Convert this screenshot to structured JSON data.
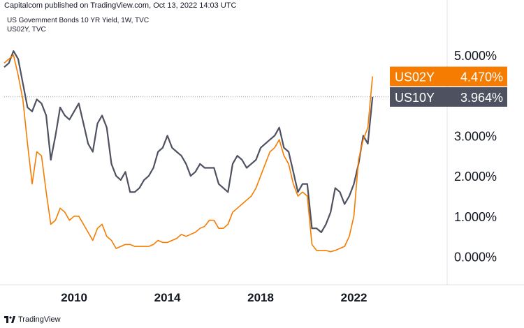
{
  "header": {
    "published": "Capitalcom published on TradingView.com, Oct 13, 2022 14:03 UTC"
  },
  "footer": {
    "brand": "TradingView"
  },
  "colors": {
    "us02y": "#f57c00",
    "us10y": "#4e5160",
    "background": "#ffffff",
    "text": "#131722",
    "dotted": "#9598a1"
  },
  "chart_data": {
    "type": "line",
    "title": "US Government Bonds 10 YR Yield, 1W, TVC",
    "subtitle": "US02Y, TVC",
    "xlabel": "",
    "ylabel": "",
    "x_ticks": [
      "2010",
      "2014",
      "2018",
      "2022"
    ],
    "y_ticks": [
      "5.000%",
      "4.000%",
      "3.000%",
      "2.000%",
      "1.000%",
      "0.000%"
    ],
    "ylim": [
      -0.7,
      5.5
    ],
    "xlim": [
      2007.0,
      2026.0
    ],
    "grid": false,
    "current_line_value": 3.964,
    "labels": [
      {
        "series": "US02Y",
        "name": "US02Y",
        "value_text": "4.470%"
      },
      {
        "series": "US10Y",
        "name": "US10Y",
        "value_text": "3.964%"
      }
    ],
    "series": [
      {
        "name": "US10Y",
        "x": [
          2007.0,
          2007.2,
          2007.4,
          2007.6,
          2007.8,
          2008.0,
          2008.2,
          2008.4,
          2008.6,
          2008.8,
          2009.0,
          2009.2,
          2009.4,
          2009.6,
          2009.8,
          2010.0,
          2010.2,
          2010.4,
          2010.6,
          2010.8,
          2011.0,
          2011.2,
          2011.4,
          2011.6,
          2011.8,
          2012.0,
          2012.2,
          2012.4,
          2012.6,
          2012.8,
          2013.0,
          2013.2,
          2013.4,
          2013.6,
          2013.8,
          2014.0,
          2014.2,
          2014.4,
          2014.6,
          2014.8,
          2015.0,
          2015.2,
          2015.4,
          2015.6,
          2015.8,
          2016.0,
          2016.2,
          2016.4,
          2016.6,
          2016.8,
          2017.0,
          2017.2,
          2017.4,
          2017.6,
          2017.8,
          2018.0,
          2018.2,
          2018.4,
          2018.6,
          2018.8,
          2019.0,
          2019.2,
          2019.4,
          2019.6,
          2019.8,
          2020.0,
          2020.2,
          2020.4,
          2020.6,
          2020.8,
          2021.0,
          2021.2,
          2021.4,
          2021.6,
          2021.8,
          2022.0,
          2022.2,
          2022.4,
          2022.6,
          2022.8
        ],
        "values": [
          4.7,
          4.8,
          5.1,
          4.9,
          4.3,
          3.7,
          3.6,
          3.9,
          3.8,
          3.5,
          2.4,
          3.0,
          3.7,
          3.5,
          3.4,
          3.6,
          3.8,
          3.3,
          2.8,
          2.6,
          3.3,
          3.5,
          3.2,
          2.3,
          2.0,
          1.9,
          2.1,
          1.6,
          1.6,
          1.7,
          1.9,
          2.0,
          2.2,
          2.6,
          2.7,
          3.0,
          2.7,
          2.6,
          2.5,
          2.3,
          2.0,
          2.1,
          2.3,
          2.2,
          2.2,
          2.2,
          1.8,
          1.7,
          1.6,
          2.3,
          2.5,
          2.4,
          2.2,
          2.3,
          2.4,
          2.7,
          2.8,
          2.9,
          3.0,
          3.2,
          2.7,
          2.6,
          2.1,
          1.6,
          1.8,
          1.8,
          0.7,
          0.7,
          0.6,
          0.8,
          1.1,
          1.7,
          1.6,
          1.3,
          1.5,
          1.8,
          2.3,
          3.0,
          2.8,
          3.96
        ]
      },
      {
        "name": "US02Y",
        "x": [
          2007.0,
          2007.2,
          2007.4,
          2007.6,
          2007.8,
          2008.0,
          2008.2,
          2008.4,
          2008.6,
          2008.8,
          2009.0,
          2009.2,
          2009.4,
          2009.6,
          2009.8,
          2010.0,
          2010.2,
          2010.4,
          2010.6,
          2010.8,
          2011.0,
          2011.2,
          2011.4,
          2011.6,
          2011.8,
          2012.0,
          2012.2,
          2012.4,
          2012.6,
          2012.8,
          2013.0,
          2013.2,
          2013.4,
          2013.6,
          2013.8,
          2014.0,
          2014.2,
          2014.4,
          2014.6,
          2014.8,
          2015.0,
          2015.2,
          2015.4,
          2015.6,
          2015.8,
          2016.0,
          2016.2,
          2016.4,
          2016.6,
          2016.8,
          2017.0,
          2017.2,
          2017.4,
          2017.6,
          2017.8,
          2018.0,
          2018.2,
          2018.4,
          2018.6,
          2018.8,
          2019.0,
          2019.2,
          2019.4,
          2019.6,
          2019.8,
          2020.0,
          2020.2,
          2020.4,
          2020.6,
          2020.8,
          2021.0,
          2021.2,
          2021.4,
          2021.6,
          2021.8,
          2022.0,
          2022.2,
          2022.4,
          2022.6,
          2022.8
        ],
        "values": [
          4.8,
          4.9,
          5.0,
          4.5,
          3.9,
          2.8,
          1.8,
          2.6,
          2.5,
          1.6,
          0.8,
          0.9,
          1.2,
          1.1,
          0.9,
          1.0,
          1.0,
          0.8,
          0.6,
          0.4,
          0.7,
          0.8,
          0.5,
          0.4,
          0.2,
          0.25,
          0.3,
          0.3,
          0.25,
          0.25,
          0.25,
          0.25,
          0.3,
          0.4,
          0.35,
          0.35,
          0.4,
          0.45,
          0.55,
          0.5,
          0.55,
          0.6,
          0.7,
          0.75,
          0.9,
          0.9,
          0.7,
          0.7,
          0.8,
          1.1,
          1.2,
          1.3,
          1.4,
          1.5,
          1.7,
          2.0,
          2.3,
          2.6,
          2.7,
          2.9,
          2.5,
          2.3,
          1.8,
          1.5,
          1.6,
          1.5,
          0.3,
          0.15,
          0.15,
          0.15,
          0.12,
          0.15,
          0.2,
          0.25,
          0.5,
          1.0,
          2.4,
          2.9,
          3.2,
          4.47
        ]
      }
    ]
  }
}
